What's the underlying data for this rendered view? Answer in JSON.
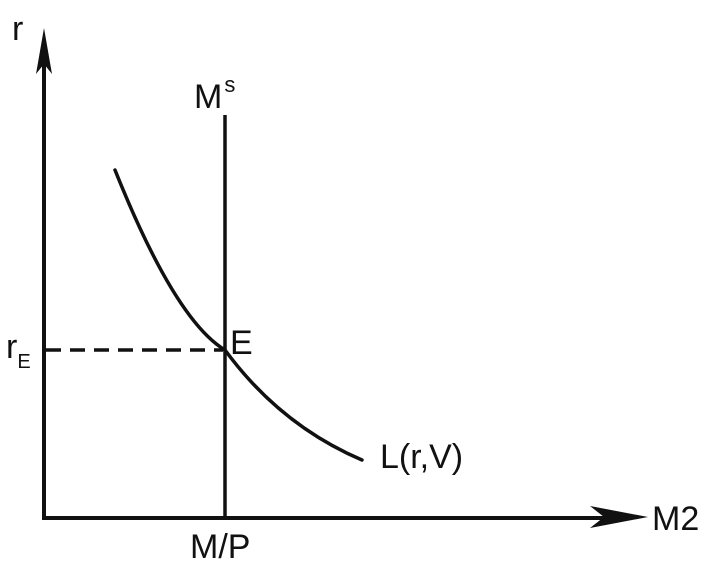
{
  "diagram": {
    "y_axis_label": "r",
    "x_axis_label": "M2",
    "supply_label_base": "M",
    "supply_label_sup": "s",
    "demand_label": "L(r,V)",
    "equilibrium_label": "E",
    "r_eq_label_base": "r",
    "r_eq_label_sub": "E",
    "x_eq_label": "M/P"
  },
  "colors": {
    "ink": "#111111",
    "background": "#ffffff"
  }
}
